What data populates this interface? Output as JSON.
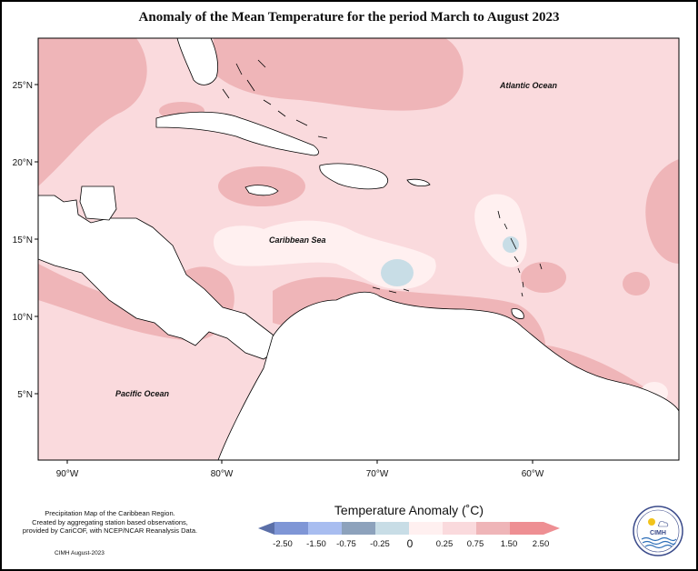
{
  "title": "Anomaly of the Mean Temperature for the period March to August 2023",
  "map": {
    "lat_labels": [
      "25°N",
      "20°N",
      "15°N",
      "10°N",
      "5°N"
    ],
    "lon_labels": [
      "90°W",
      "80°W",
      "70°W",
      "60°W"
    ],
    "place_labels": {
      "atlantic": "Atlantic Ocean",
      "caribbean": "Caribbean Sea",
      "pacific": "Pacific Ocean"
    }
  },
  "legend": {
    "title": "Temperature Anomaly (˚C)",
    "labels": [
      "-2.50",
      "-1.50",
      "-0.75",
      "-0.25",
      "0",
      "0.25",
      "0.75",
      "1.50",
      "2.50"
    ],
    "colors": [
      "#5b6fa8",
      "#7f96d6",
      "#a8bdf0",
      "#8da2bc",
      "#c8dde6",
      "#fff0f0",
      "#fadadd",
      "#efb5b8",
      "#ee8f93"
    ]
  },
  "credit": {
    "line1": "Precipitation Map of the Caribbean Region.",
    "line2": "Created by aggregating station based observations,",
    "line3": "provided by CariCOF, with NCEP/NCAR Reanalysis Data.",
    "date": "CIMH August-2023"
  },
  "logo": {
    "text": "CIMH"
  }
}
